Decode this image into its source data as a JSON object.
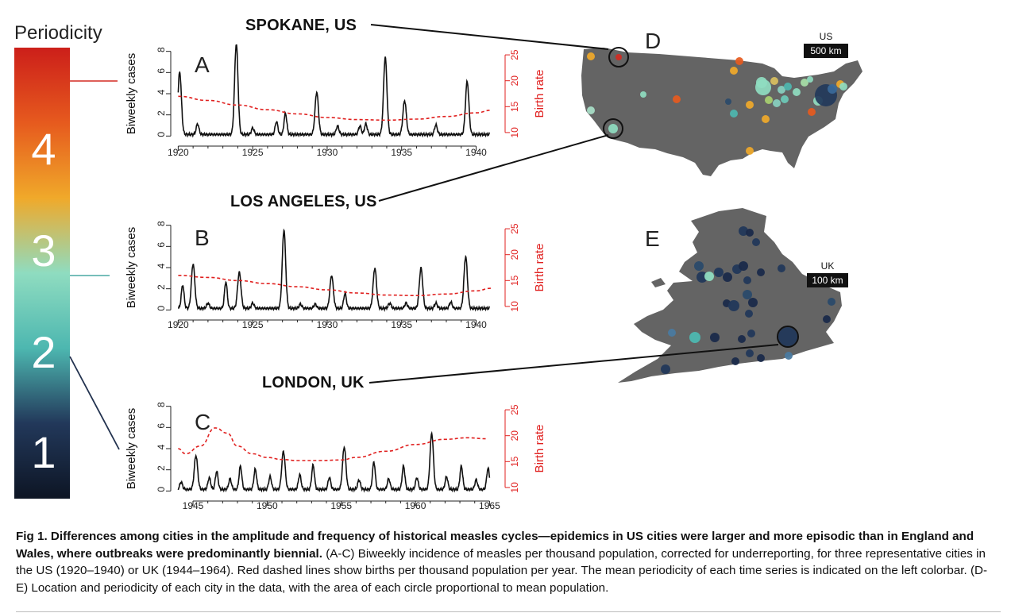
{
  "colorbar": {
    "title": "Periodicity",
    "labels": [
      "4",
      "3",
      "2",
      "1"
    ],
    "stops": [
      "#cc1f1a",
      "#e65a1e",
      "#f0a92a",
      "#8fdcc0",
      "#4db7b0",
      "#22385a",
      "#0d1524"
    ]
  },
  "city_labels": {
    "spokane": "SPOKANE, US",
    "los_angeles": "LOS ANGELES, US",
    "london": "LONDON, UK"
  },
  "panel_letters": {
    "a": "A",
    "b": "B",
    "c": "C",
    "d": "D",
    "e": "E"
  },
  "maps": {
    "us": {
      "name": "US",
      "scale": "500 km"
    },
    "uk": {
      "name": "UK",
      "scale": "100 km"
    }
  },
  "chart_data": [
    {
      "type": "line",
      "panel": "A",
      "city": "Spokane, US",
      "xlabel": "",
      "ylabel": "Biweekly cases",
      "ylabel2": "Birth rate",
      "xlim": [
        1919.5,
        1941.2
      ],
      "ylim": [
        -0.5,
        8.5
      ],
      "y2lim": [
        8.3,
        26.7
      ],
      "xticks": [
        1920,
        1925,
        1930,
        1935,
        1940
      ],
      "yticks": [
        0,
        2,
        4,
        6,
        8
      ],
      "y2ticks": [
        10,
        15,
        20,
        25
      ],
      "series": [
        {
          "style": "solid",
          "color": "#111111",
          "peaks": [
            [
              1920.1,
              5.9
            ],
            [
              1921.3,
              1.0
            ],
            [
              1923.9,
              8.6
            ],
            [
              1925.0,
              0.6
            ],
            [
              1926.6,
              1.2
            ],
            [
              1927.2,
              2.0
            ],
            [
              1929.3,
              4.0
            ],
            [
              1930.7,
              0.8
            ],
            [
              1932.2,
              0.8
            ],
            [
              1932.6,
              1.0
            ],
            [
              1933.9,
              7.3
            ],
            [
              1935.2,
              3.2
            ],
            [
              1937.3,
              0.9
            ],
            [
              1939.4,
              5.0
            ]
          ]
        },
        {
          "style": "dashed",
          "color": "#e0201f",
          "axis": "right",
          "x": [
            1920,
            1922,
            1924,
            1926,
            1928,
            1930,
            1932,
            1934,
            1936,
            1938,
            1940,
            1941
          ],
          "y": [
            17.0,
            16.2,
            15.3,
            14.4,
            13.6,
            12.9,
            12.5,
            12.4,
            12.6,
            13.1,
            13.8,
            14.3
          ]
        }
      ]
    },
    {
      "type": "line",
      "panel": "B",
      "city": "Los Angeles, US",
      "xlabel": "",
      "ylabel": "Biweekly cases",
      "ylabel2": "Birth rate",
      "xlim": [
        1919.5,
        1941.2
      ],
      "ylim": [
        -0.5,
        8.5
      ],
      "y2lim": [
        8.3,
        26.7
      ],
      "xticks": [
        1920,
        1925,
        1930,
        1935,
        1940
      ],
      "yticks": [
        0,
        2,
        4,
        6,
        8
      ],
      "y2ticks": [
        10,
        15,
        20,
        25
      ],
      "series": [
        {
          "style": "solid",
          "color": "#111111",
          "peaks": [
            [
              1920.3,
              2.2
            ],
            [
              1921.0,
              4.2
            ],
            [
              1922.0,
              0.5
            ],
            [
              1923.2,
              2.5
            ],
            [
              1924.1,
              3.4
            ],
            [
              1925.0,
              0.5
            ],
            [
              1927.1,
              7.4
            ],
            [
              1928.2,
              0.4
            ],
            [
              1929.2,
              0.4
            ],
            [
              1930.3,
              3.1
            ],
            [
              1931.2,
              1.4
            ],
            [
              1933.2,
              3.8
            ],
            [
              1934.2,
              0.5
            ],
            [
              1935.3,
              0.5
            ],
            [
              1936.3,
              3.8
            ],
            [
              1937.3,
              0.5
            ],
            [
              1938.3,
              0.6
            ],
            [
              1939.3,
              4.9
            ]
          ]
        },
        {
          "style": "dashed",
          "color": "#e0201f",
          "axis": "right",
          "x": [
            1920,
            1922,
            1924,
            1926,
            1928,
            1930,
            1932,
            1934,
            1936,
            1938,
            1940,
            1941
          ],
          "y": [
            16.0,
            15.6,
            15.0,
            14.4,
            13.8,
            13.2,
            12.6,
            12.2,
            12.1,
            12.4,
            13.0,
            13.5
          ]
        }
      ]
    },
    {
      "type": "line",
      "panel": "C",
      "city": "London, UK",
      "xlabel": "",
      "ylabel": "Biweekly cases",
      "ylabel2": "Birth rate",
      "xlim": [
        1943.5,
        1965.3
      ],
      "ylim": [
        -0.5,
        8.5
      ],
      "y2lim": [
        8.3,
        26.7
      ],
      "xticks": [
        1945,
        1950,
        1955,
        1960,
        1965
      ],
      "yticks": [
        0,
        2,
        4,
        6,
        8
      ],
      "y2ticks": [
        10,
        15,
        20,
        25
      ],
      "series": [
        {
          "style": "solid",
          "color": "#111111",
          "peaks": [
            [
              1944.2,
              0.7
            ],
            [
              1945.2,
              3.2
            ],
            [
              1946.1,
              1.1
            ],
            [
              1946.6,
              1.7
            ],
            [
              1947.5,
              1.0
            ],
            [
              1948.2,
              2.2
            ],
            [
              1949.2,
              1.9
            ],
            [
              1950.2,
              1.2
            ],
            [
              1951.1,
              3.6
            ],
            [
              1952.2,
              1.4
            ],
            [
              1953.1,
              2.3
            ],
            [
              1954.2,
              1.1
            ],
            [
              1955.2,
              4.0
            ],
            [
              1956.2,
              0.9
            ],
            [
              1957.2,
              2.6
            ],
            [
              1958.2,
              1.0
            ],
            [
              1959.2,
              2.2
            ],
            [
              1960.1,
              1.1
            ],
            [
              1961.1,
              5.3
            ],
            [
              1962.1,
              1.2
            ],
            [
              1963.1,
              2.2
            ],
            [
              1964.1,
              0.9
            ],
            [
              1964.9,
              2.0
            ]
          ]
        },
        {
          "style": "dashed",
          "color": "#e0201f",
          "axis": "right",
          "x": [
            1944.0,
            1944.5,
            1945.5,
            1946.5,
            1947.3,
            1948.0,
            1949.0,
            1950.0,
            1951.0,
            1952.0,
            1953.5,
            1955.0,
            1956.0,
            1958.0,
            1960.0,
            1962.0,
            1963.5,
            1964.8
          ],
          "y": [
            17.5,
            16.5,
            18.0,
            21.5,
            20.5,
            18.0,
            16.5,
            15.8,
            15.4,
            15.2,
            15.2,
            15.3,
            15.8,
            17.0,
            18.3,
            19.3,
            19.6,
            19.4
          ]
        }
      ]
    }
  ],
  "caption": {
    "fig_label": "Fig 1.",
    "title": "Differences among cities in the amplitude and frequency of historical measles cycles—epidemics in US cities were larger and more episodic than in England and Wales, where outbreaks were predominantly biennial.",
    "body": "(A-C) Biweekly incidence of measles per thousand population, corrected for underreporting, for three representative cities in the US (1920–1940) or UK (1944–1964). Red dashed lines show births per thousand population per year. The mean periodicity of each time series is indicated on the left colorbar. (D-E) Location and periodicity of each city in the data, with the area of each circle proportional to mean population."
  }
}
